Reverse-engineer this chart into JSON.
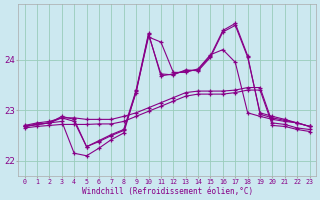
{
  "xlabel": "Windchill (Refroidissement éolien,°C)",
  "ylabel": "",
  "bg_color": "#cce8f0",
  "line_color": "#880088",
  "grid_color": "#99ccbb",
  "xlim": [
    -0.5,
    23.5
  ],
  "ylim": [
    21.7,
    25.1
  ],
  "yticks": [
    22,
    23,
    24
  ],
  "xticks": [
    0,
    1,
    2,
    3,
    4,
    5,
    6,
    7,
    8,
    9,
    10,
    11,
    12,
    13,
    14,
    15,
    16,
    17,
    18,
    19,
    20,
    21,
    22,
    23
  ],
  "series": [
    [
      22.7,
      22.75,
      22.78,
      22.85,
      22.85,
      22.82,
      22.82,
      22.82,
      22.88,
      22.95,
      23.05,
      23.15,
      23.25,
      23.35,
      23.38,
      23.38,
      23.38,
      23.4,
      23.45,
      23.45,
      22.75,
      22.72,
      22.65,
      22.62
    ],
    [
      22.65,
      22.68,
      22.7,
      22.72,
      22.72,
      22.72,
      22.73,
      22.73,
      22.78,
      22.88,
      22.98,
      23.08,
      23.18,
      23.28,
      23.32,
      23.32,
      23.32,
      23.35,
      23.4,
      23.4,
      22.7,
      22.68,
      22.62,
      22.58
    ],
    [
      22.68,
      22.72,
      22.75,
      22.78,
      22.15,
      22.1,
      22.25,
      22.42,
      22.55,
      23.38,
      24.45,
      24.35,
      23.75,
      23.75,
      23.82,
      24.1,
      24.2,
      23.95,
      22.95,
      22.88,
      22.82,
      22.78,
      22.75,
      22.68
    ],
    [
      22.68,
      22.72,
      22.75,
      22.85,
      22.78,
      22.28,
      22.38,
      22.5,
      22.6,
      23.35,
      24.5,
      23.72,
      23.7,
      23.8,
      23.78,
      24.05,
      24.55,
      24.68,
      24.05,
      22.95,
      22.88,
      22.82,
      22.75,
      22.68
    ],
    [
      22.68,
      22.72,
      22.75,
      22.88,
      22.82,
      22.28,
      22.4,
      22.52,
      22.62,
      23.4,
      24.52,
      23.68,
      23.72,
      23.78,
      23.8,
      24.08,
      24.58,
      24.72,
      24.08,
      22.92,
      22.85,
      22.8,
      22.75,
      22.68
    ]
  ]
}
